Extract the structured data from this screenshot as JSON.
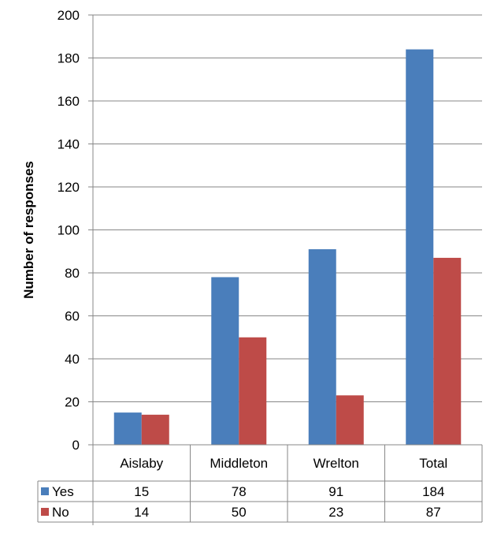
{
  "chart_data": {
    "type": "bar",
    "title": "",
    "xlabel": "",
    "ylabel": "Number of responses",
    "ylim": [
      0,
      200
    ],
    "yticks": [
      0,
      20,
      40,
      60,
      80,
      100,
      120,
      140,
      160,
      180,
      200
    ],
    "grid": true,
    "legend": "data-table",
    "categories": [
      "Aislaby",
      "Middleton",
      "Wrelton",
      "Total"
    ],
    "series": [
      {
        "name": "Yes",
        "color": "#4a7ebb",
        "values": [
          15,
          78,
          91,
          184
        ]
      },
      {
        "name": "No",
        "color": "#be4b48",
        "values": [
          14,
          50,
          23,
          87
        ]
      }
    ]
  }
}
